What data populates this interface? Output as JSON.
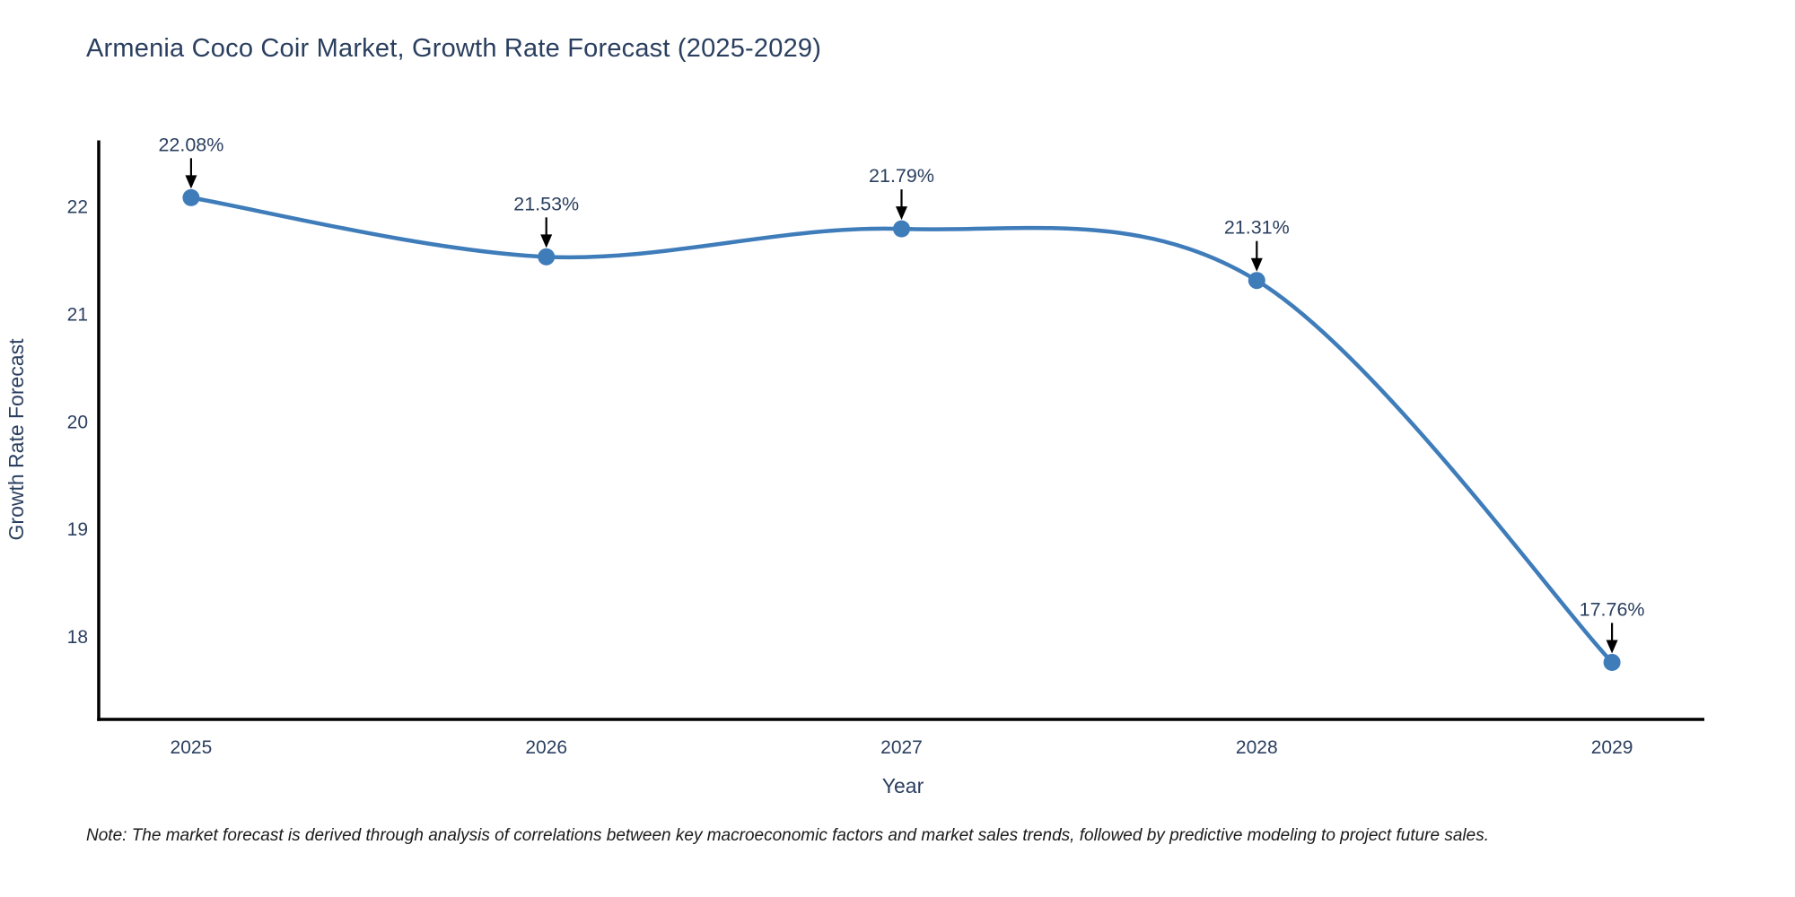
{
  "chart_data": {
    "type": "line",
    "line_shape": "spline",
    "title": "Armenia Coco Coir Market, Growth Rate Forecast (2025-2029)",
    "xlabel": "Year",
    "ylabel": "Growth Rate Forecast",
    "x": [
      2025,
      2026,
      2027,
      2028,
      2029
    ],
    "y": [
      22.08,
      21.53,
      21.79,
      21.31,
      17.76
    ],
    "point_labels": [
      "22.08%",
      "21.53%",
      "21.79%",
      "21.31%",
      "17.76%"
    ],
    "x_ticks": [
      "2025",
      "2026",
      "2027",
      "2028",
      "2029"
    ],
    "y_ticks": [
      22,
      21,
      20,
      19,
      18
    ],
    "xlim": [
      2024.74,
      2029.26
    ],
    "ylim": [
      17.23,
      22.6
    ],
    "grid": false,
    "legend": false,
    "markers": true,
    "annotations_arrow": true,
    "note": "Note: The market forecast is derived through analysis of correlations between key macroeconomic factors and market sales trends, followed by predictive modeling to project future sales."
  },
  "colors": {
    "series_line": "#3f7cba",
    "marker_fill": "#3f7cba",
    "axis_line": "#000000",
    "tick_text": "#2a3f5f",
    "title_text": "#2a3f5f",
    "annotation_text": "#2a3f5f",
    "annotation_arrow": "#000000",
    "note_text": "#1a1a1a",
    "background": "#ffffff"
  }
}
